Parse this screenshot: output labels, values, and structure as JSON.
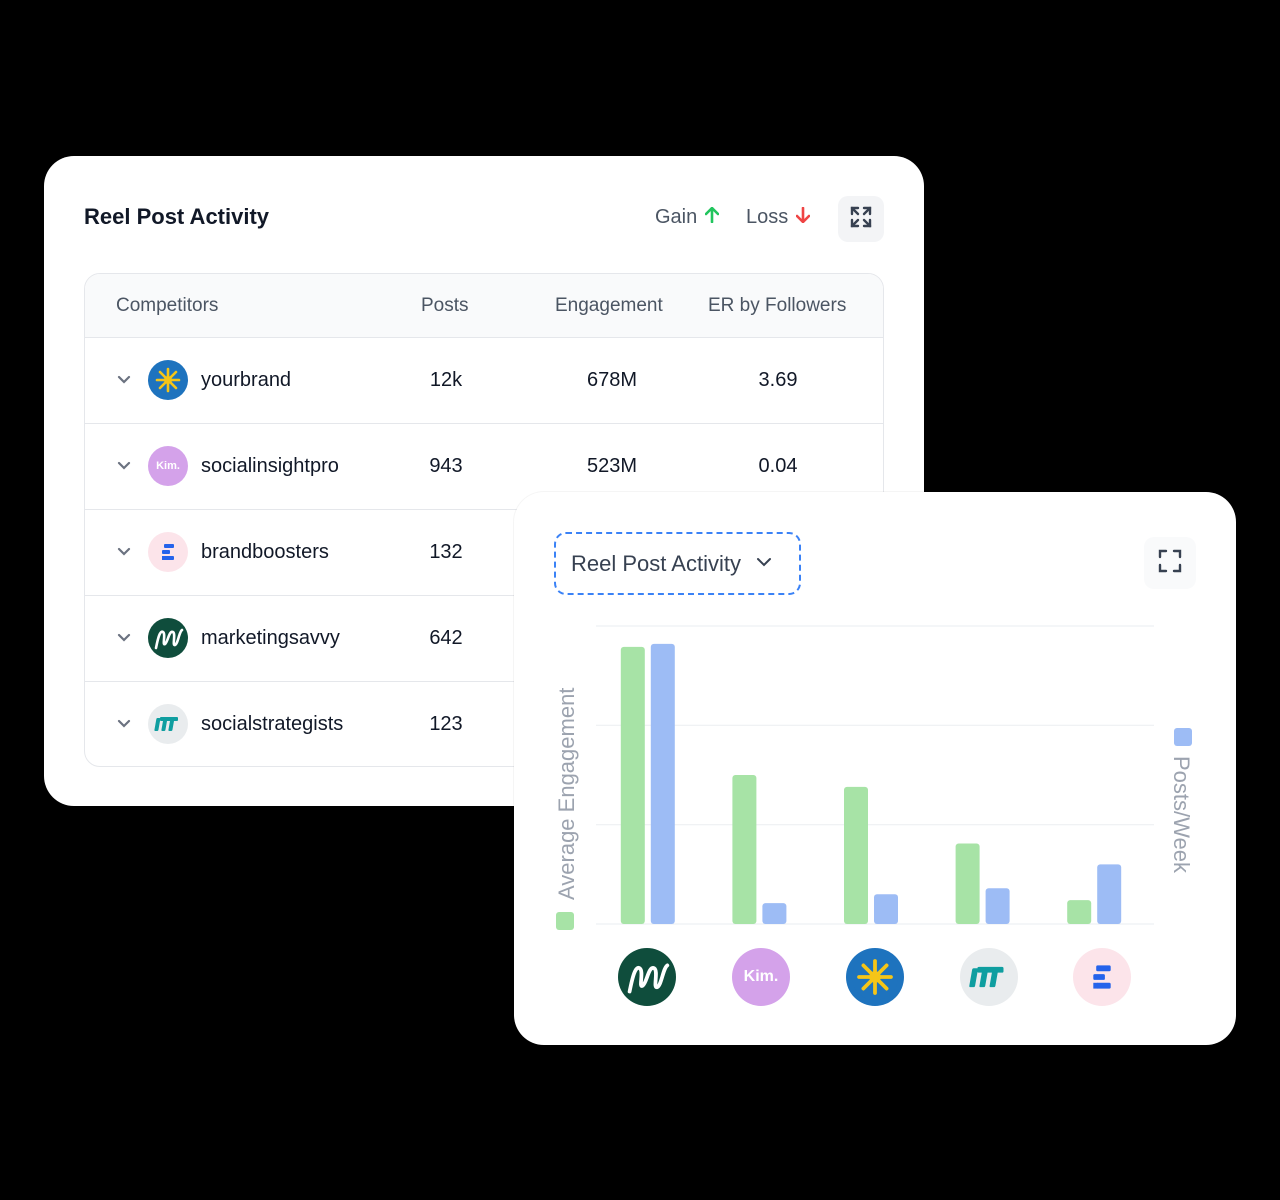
{
  "table_card": {
    "title": "Reel Post Activity",
    "legend": {
      "gain_label": "Gain",
      "loss_label": "Loss"
    },
    "headers": {
      "competitors": "Competitors",
      "posts": "Posts",
      "engagement": "Engagement",
      "er": "ER by Followers"
    },
    "rows": [
      {
        "name": "yourbrand",
        "posts": "12k",
        "engagement": "678M",
        "er": "3.69",
        "avatar": "sun-logo"
      },
      {
        "name": "socialinsightpro",
        "posts": "943",
        "engagement": "523M",
        "er": "0.04",
        "avatar": "kim-logo"
      },
      {
        "name": "brandboosters",
        "posts": "132",
        "engagement": "",
        "er": "",
        "avatar": "stack-logo"
      },
      {
        "name": "marketingsavvy",
        "posts": "642",
        "engagement": "",
        "er": "",
        "avatar": "m-script-logo"
      },
      {
        "name": "socialstrategists",
        "posts": "123",
        "engagement": "",
        "er": "",
        "avatar": "teal-m-logo"
      }
    ]
  },
  "chart_card": {
    "selector_label": "Reel Post Activity",
    "colors": {
      "engagement": "#a7e3a6",
      "posts": "#9dbcf5"
    },
    "logos": {
      "kim_text": "Kim."
    }
  },
  "chart_data": {
    "type": "bar",
    "categories": [
      "marketingsavvy",
      "socialinsightpro",
      "yourbrand",
      "socialstrategists",
      "brandboosters"
    ],
    "series": [
      {
        "name": "Average Engagement",
        "axis": "left",
        "values": [
          0.93,
          0.5,
          0.46,
          0.27,
          0.08
        ]
      },
      {
        "name": "Posts/Week",
        "axis": "right",
        "values": [
          0.94,
          0.07,
          0.1,
          0.12,
          0.2
        ]
      }
    ],
    "ylabel_left": "Average Engagement",
    "ylabel_right": "Posts/Week",
    "ylim": [
      0,
      1
    ],
    "grid": true
  }
}
